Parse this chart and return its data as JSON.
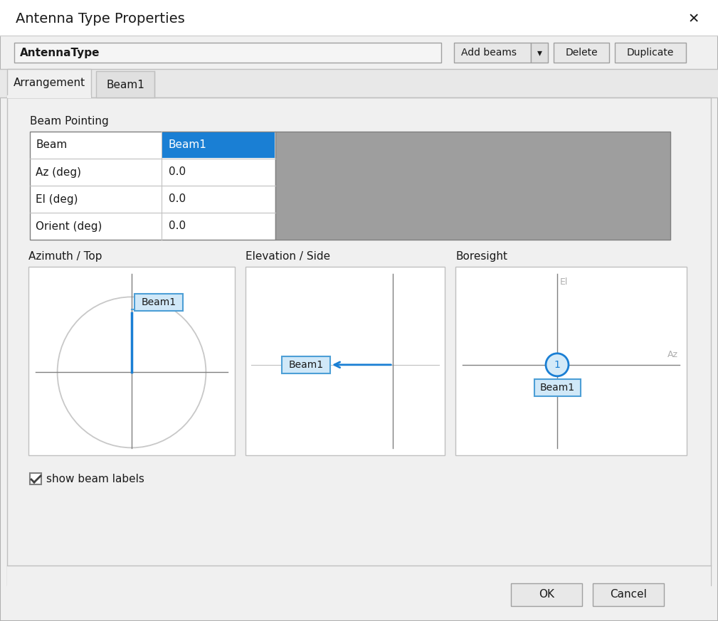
{
  "title": "Antenna Type Properties",
  "bg_color": "#f0f0f0",
  "white": "#ffffff",
  "gray_panel": "#9e9e9e",
  "blue_highlight": "#1a7fd4",
  "blue_label_bg": "#d0e8f8",
  "blue_label_border": "#4d9fd6",
  "text_color": "#000000",
  "gray_text": "#909090",
  "antenna_type_text": "AntennaType",
  "tab1": "Arrangement",
  "tab2": "Beam1",
  "beam_pointing": "Beam Pointing",
  "table_rows": [
    "Beam",
    "Az (deg)",
    "El (deg)",
    "Orient (deg)"
  ],
  "table_col1": [
    "Beam1",
    "0.0",
    "0.0",
    "0.0"
  ],
  "az_top_label": "Azimuth / Top",
  "el_side_label": "Elevation / Side",
  "boresight_label": "Boresight",
  "beam_label": "Beam1",
  "show_beam_labels": "show beam labels",
  "ok_btn": "OK",
  "cancel_btn": "Cancel",
  "add_beams_btn": "Add beams",
  "delete_btn": "Delete",
  "duplicate_btn": "Duplicate",
  "el_label": "El",
  "az_label": "Az"
}
